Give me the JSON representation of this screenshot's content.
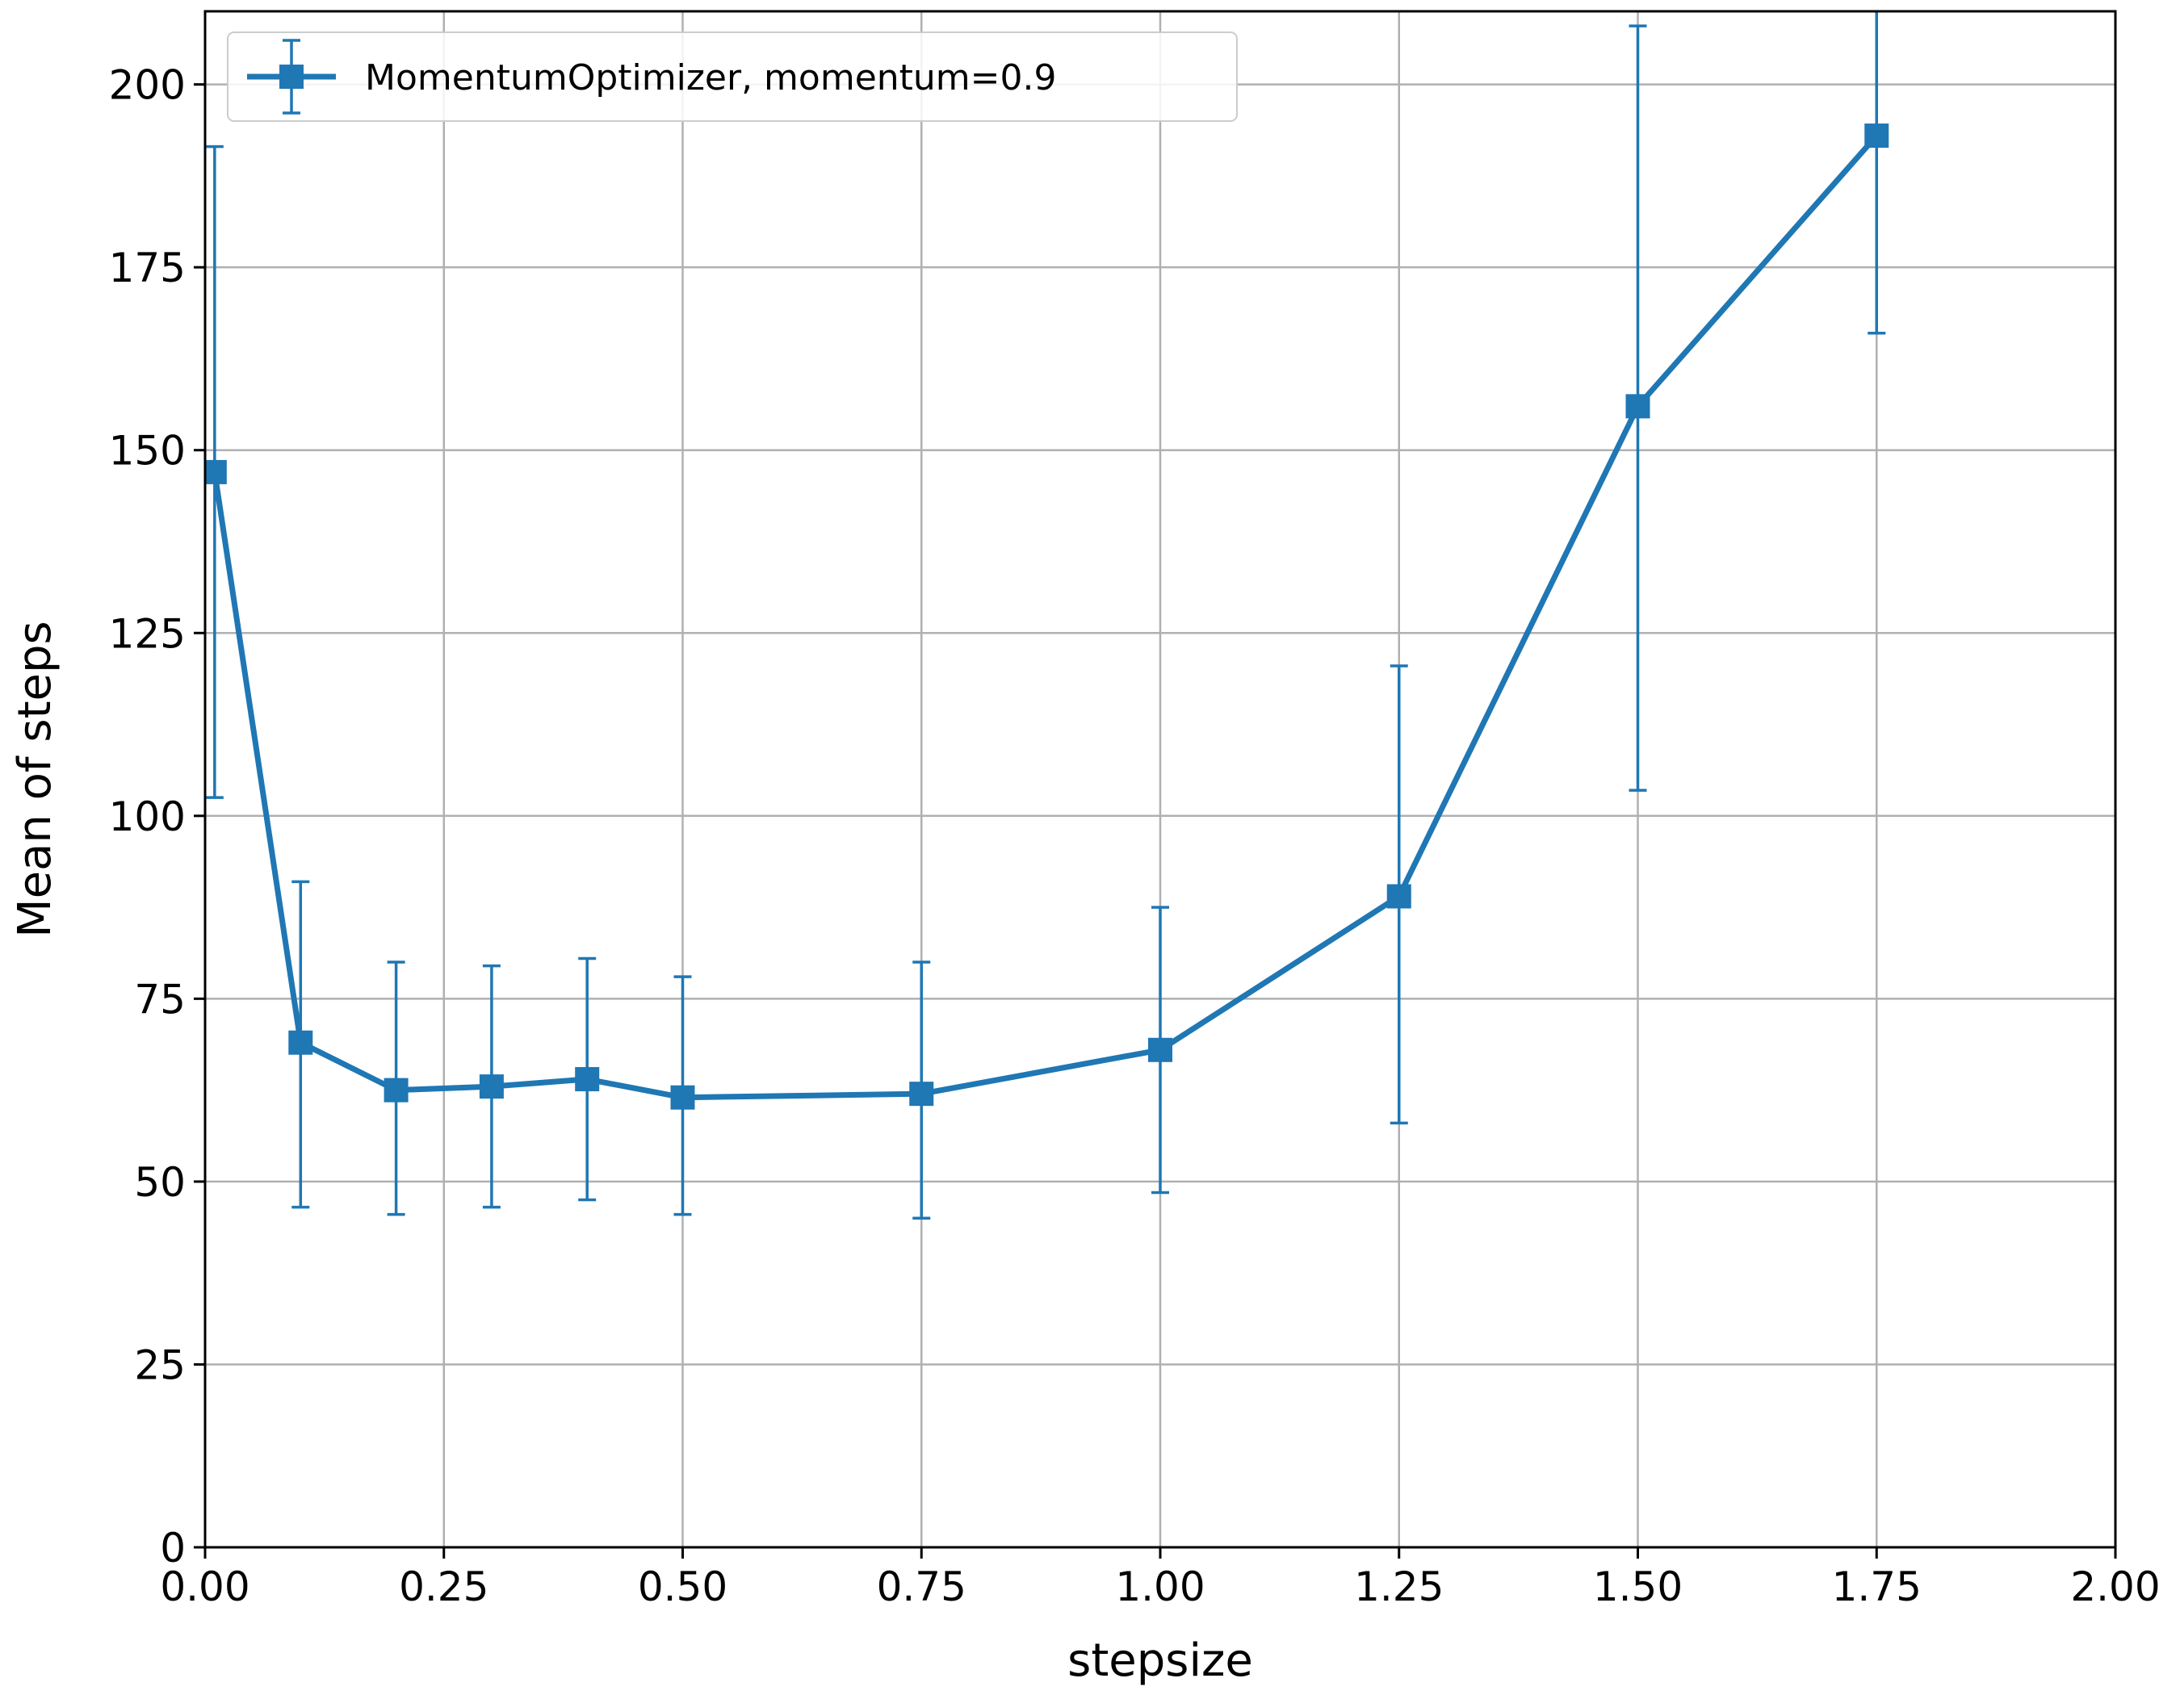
{
  "chart_data": {
    "type": "line",
    "title": "",
    "xlabel": "stepsize",
    "ylabel": "Mean of steps",
    "xlim": [
      0.0,
      2.0
    ],
    "ylim": [
      0,
      210
    ],
    "x_ticks": [
      "0.00",
      "0.25",
      "0.50",
      "0.75",
      "1.00",
      "1.25",
      "1.50",
      "1.75",
      "2.00"
    ],
    "y_ticks": [
      "0",
      "25",
      "50",
      "75",
      "100",
      "125",
      "150",
      "175",
      "200"
    ],
    "grid": true,
    "legend_position": "top-left",
    "series": [
      {
        "name": "MomentumOptimizer, momentum=0.9",
        "color": "#1f77b4",
        "marker": "square",
        "x": [
          0.01,
          0.1,
          0.2,
          0.3,
          0.4,
          0.5,
          0.75,
          1.0,
          1.25,
          1.5,
          1.75
        ],
        "y": [
          147,
          69,
          62.5,
          63,
          64,
          61.5,
          62,
          68,
          89,
          156,
          193
        ],
        "err_low": [
          102.5,
          46.5,
          45.5,
          46.5,
          47.5,
          45.5,
          45,
          48.5,
          58,
          103.5,
          166
        ],
        "err_high": [
          191.5,
          91,
          80,
          79.5,
          80.5,
          78,
          80,
          87.5,
          120.5,
          208,
          220
        ]
      }
    ]
  }
}
